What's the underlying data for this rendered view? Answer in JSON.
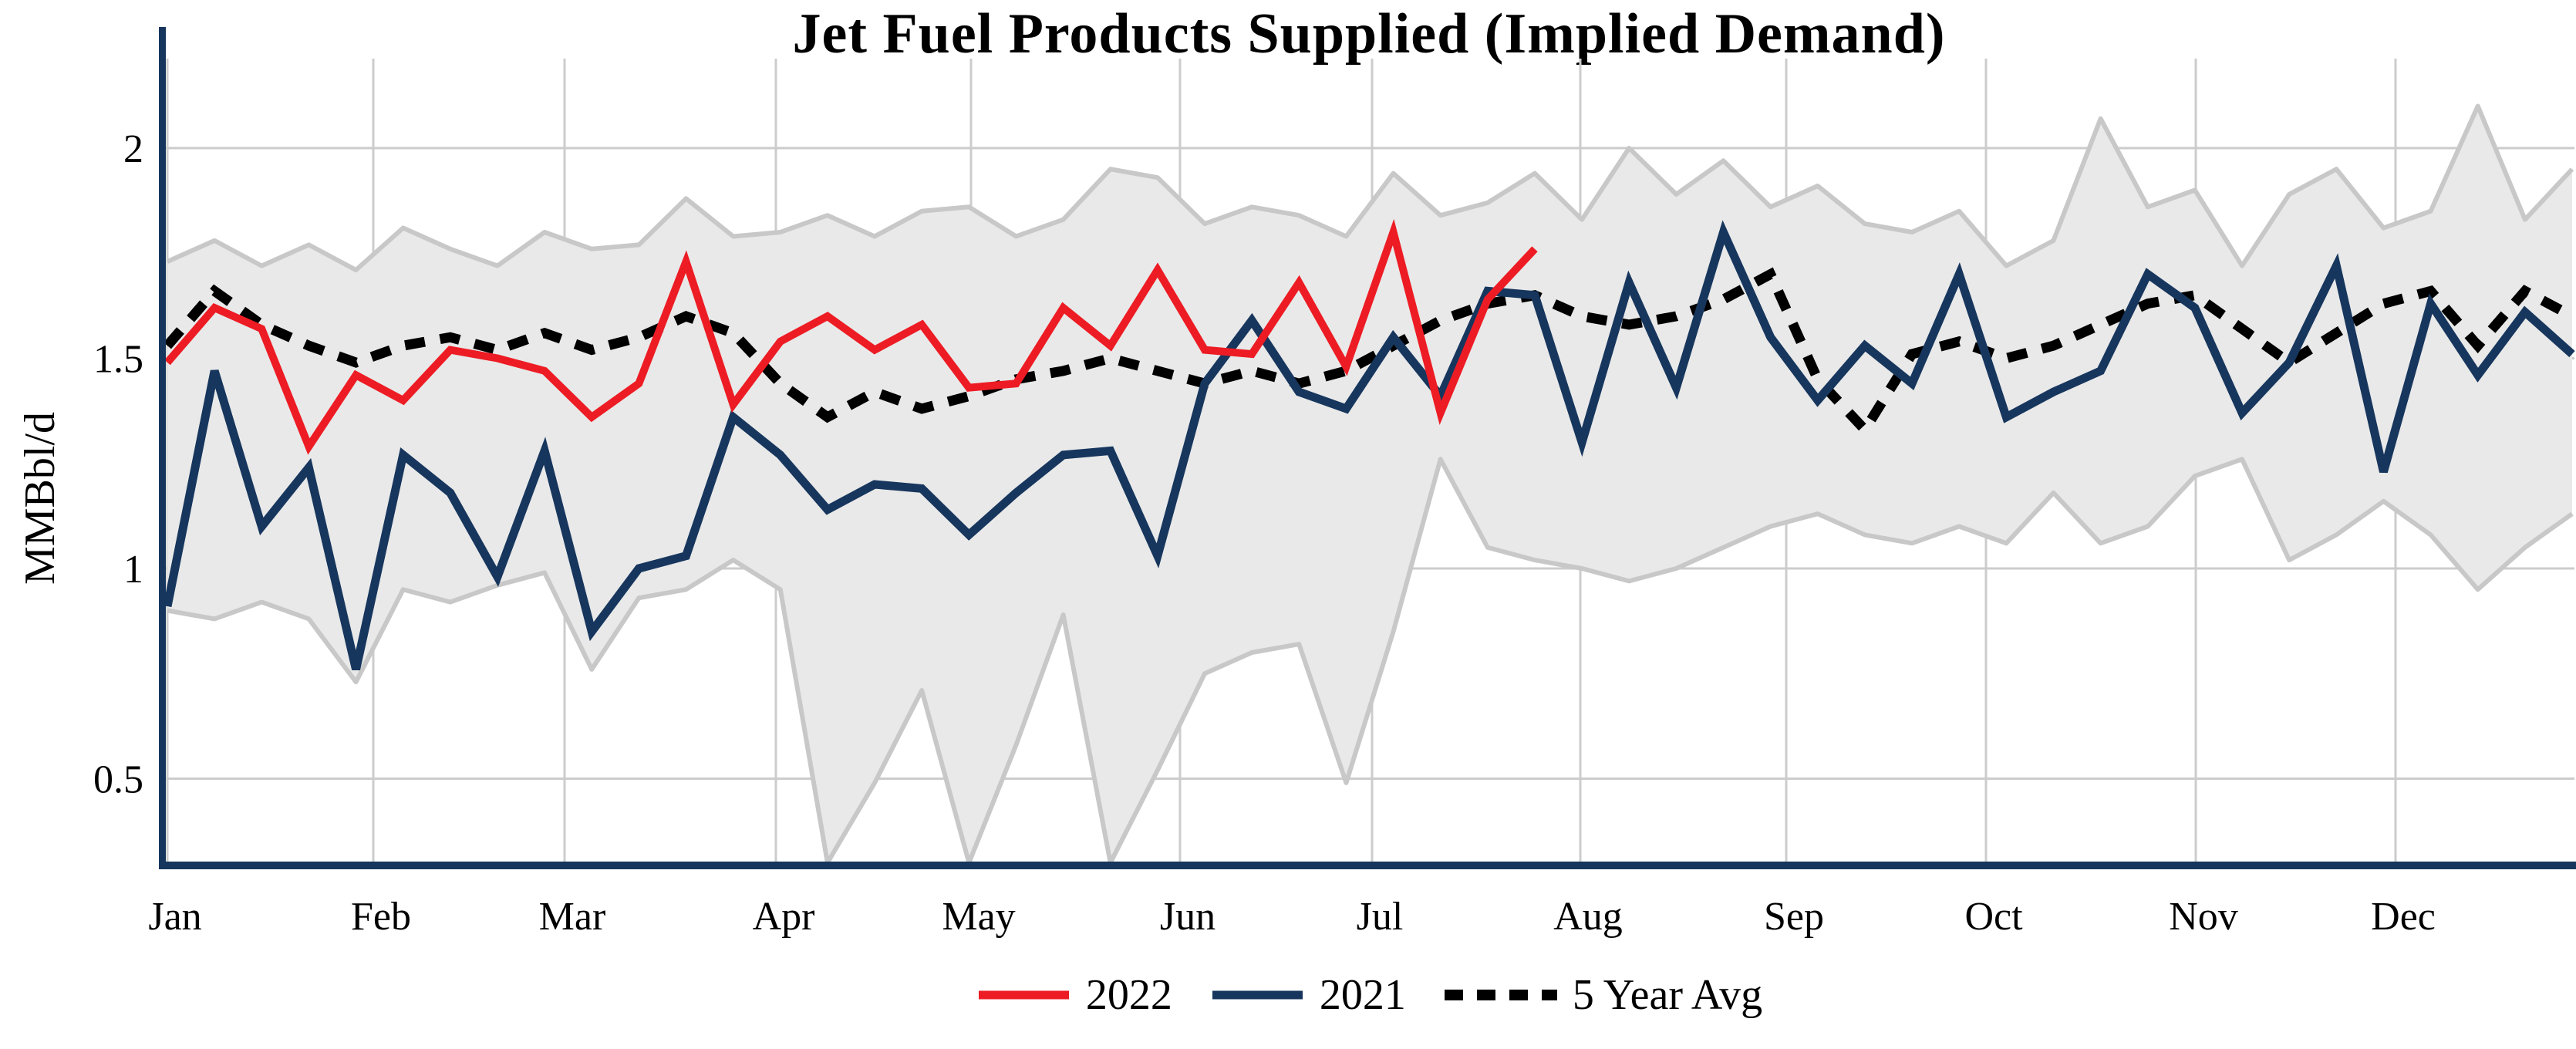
{
  "title": "Jet Fuel Products Supplied (Implied Demand)",
  "y_axis": {
    "label": "MMBbl/d",
    "ticks": [
      {
        "value": 2,
        "label": "2"
      },
      {
        "value": 1.5,
        "label": "1.5"
      },
      {
        "value": 1,
        "label": "1"
      },
      {
        "value": 0.5,
        "label": "0.5"
      }
    ]
  },
  "x_axis": {
    "months": [
      "Jan",
      "Feb",
      "Mar",
      "Apr",
      "May",
      "Jun",
      "Jul",
      "Aug",
      "Sep",
      "Oct",
      "Nov",
      "Dec"
    ],
    "month_x": [
      217,
      484,
      732,
      1006,
      1259,
      1530,
      1779,
      2049,
      2316,
      2575,
      2847,
      3106
    ]
  },
  "legend": [
    {
      "label": "2022",
      "color": "#ED1C24",
      "style": "solid"
    },
    {
      "label": "2021",
      "color": "#17365D",
      "style": "solid"
    },
    {
      "label": "5 Year Avg",
      "color": "#000000",
      "style": "dotted"
    }
  ],
  "colors": {
    "red_2022": "#ED1C24",
    "navy_2021": "#17365D",
    "avg_dotted": "#000000",
    "band_fill": "#E9E9E9",
    "band_edge": "#C8C8C8",
    "gridline": "#CCCCCC",
    "axis": "#17365D",
    "background": "#FFFFFF"
  },
  "chart_data": {
    "type": "line",
    "title": "Jet Fuel Products Supplied (Implied Demand)",
    "xlabel": "",
    "ylabel": "MMBbl/d",
    "x_unit": "week of year (weekly data, Jan-Dec)",
    "ylim": [
      0.29,
      2.15
    ],
    "yticks": [
      0.5,
      1,
      1.5,
      2
    ],
    "grid": true,
    "legend_position": "bottom",
    "band": {
      "name": "5 Year Range",
      "upper": [
        1.73,
        1.78,
        1.72,
        1.77,
        1.71,
        1.81,
        1.76,
        1.72,
        1.8,
        1.76,
        1.77,
        1.88,
        1.79,
        1.8,
        1.84,
        1.79,
        1.85,
        1.86,
        1.79,
        1.83,
        1.95,
        1.93,
        1.82,
        1.86,
        1.84,
        1.79,
        1.94,
        1.84,
        1.87,
        1.94,
        1.83,
        2.0,
        1.89,
        1.97,
        1.86,
        1.91,
        1.82,
        1.8,
        1.85,
        1.72,
        1.78,
        2.07,
        1.86,
        1.9,
        1.72,
        1.89,
        1.95,
        1.81,
        1.85,
        2.1,
        1.83,
        1.95
      ],
      "lower": [
        0.9,
        0.88,
        0.92,
        0.88,
        0.73,
        0.95,
        0.92,
        0.96,
        0.99,
        0.76,
        0.93,
        0.95,
        1.02,
        0.95,
        0.3,
        0.49,
        0.71,
        0.3,
        0.58,
        0.89,
        0.3,
        0.52,
        0.75,
        0.8,
        0.82,
        0.49,
        0.85,
        1.26,
        1.05,
        1.02,
        1.0,
        0.97,
        1.0,
        1.05,
        1.1,
        1.13,
        1.08,
        1.06,
        1.1,
        1.06,
        1.18,
        1.06,
        1.1,
        1.22,
        1.26,
        1.02,
        1.08,
        1.16,
        1.08,
        0.95,
        1.05,
        1.13
      ]
    },
    "series": [
      {
        "name": "5 Year Avg",
        "color": "#000000",
        "style": "dotted",
        "values": [
          1.53,
          1.66,
          1.58,
          1.53,
          1.49,
          1.53,
          1.55,
          1.52,
          1.56,
          1.52,
          1.55,
          1.6,
          1.56,
          1.44,
          1.36,
          1.42,
          1.38,
          1.41,
          1.45,
          1.47,
          1.5,
          1.47,
          1.44,
          1.47,
          1.44,
          1.47,
          1.53,
          1.59,
          1.63,
          1.65,
          1.6,
          1.58,
          1.6,
          1.64,
          1.7,
          1.45,
          1.33,
          1.51,
          1.54,
          1.5,
          1.53,
          1.58,
          1.63,
          1.65,
          1.57,
          1.49,
          1.56,
          1.63,
          1.66,
          1.53,
          1.66,
          1.6
        ]
      },
      {
        "name": "2021",
        "color": "#17365D",
        "style": "solid",
        "values": [
          0.91,
          1.47,
          1.1,
          1.24,
          0.76,
          1.27,
          1.18,
          0.98,
          1.28,
          0.85,
          1.0,
          1.03,
          1.36,
          1.27,
          1.14,
          1.2,
          1.19,
          1.08,
          1.18,
          1.27,
          1.28,
          1.03,
          1.44,
          1.59,
          1.42,
          1.38,
          1.55,
          1.41,
          1.66,
          1.65,
          1.3,
          1.68,
          1.43,
          1.8,
          1.55,
          1.4,
          1.53,
          1.44,
          1.7,
          1.36,
          1.42,
          1.47,
          1.7,
          1.62,
          1.37,
          1.49,
          1.72,
          1.23,
          1.63,
          1.46,
          1.61,
          1.51
        ]
      },
      {
        "name": "2022",
        "color": "#ED1C24",
        "style": "solid",
        "values": [
          1.49,
          1.62,
          1.57,
          1.29,
          1.46,
          1.4,
          1.52,
          1.5,
          1.47,
          1.36,
          1.44,
          1.73,
          1.39,
          1.54,
          1.6,
          1.52,
          1.58,
          1.43,
          1.44,
          1.62,
          1.53,
          1.71,
          1.52,
          1.51,
          1.68,
          1.48,
          1.8,
          1.37,
          1.64,
          1.76
        ]
      }
    ]
  }
}
